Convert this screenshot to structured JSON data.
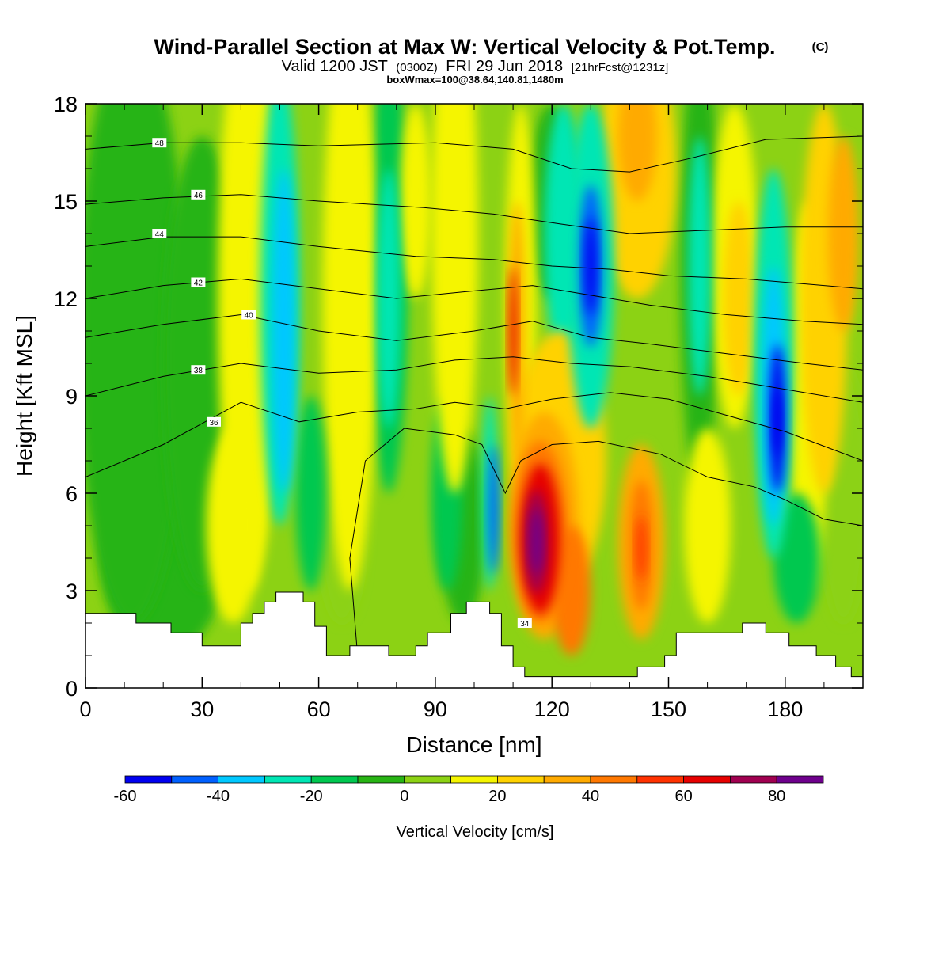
{
  "title": {
    "main": "Wind-Parallel Section at Max W: Vertical Velocity & Pot.Temp.",
    "copyright": "(C)",
    "valid_prefix": "Valid 1200 JST",
    "valid_utc": "(0300Z)",
    "valid_date": "FRI 29 Jun 2018",
    "forecast": "[21hrFcst@1231z]",
    "box_info": "boxWmax=100@38.64,140.81,1480m"
  },
  "chart_data": {
    "type": "heatmap",
    "xlabel": "Distance [nm]",
    "ylabel": "Height [Kft MSL]",
    "xlim": [
      0,
      200
    ],
    "ylim": [
      0,
      18
    ],
    "x_ticks": [
      0,
      30,
      60,
      90,
      120,
      150,
      180
    ],
    "y_ticks": [
      0,
      3,
      6,
      9,
      12,
      15,
      18
    ],
    "colorbar": {
      "label": "Vertical Velocity [cm/s]",
      "levels": [
        -60,
        -50,
        -40,
        -30,
        -20,
        -10,
        0,
        10,
        20,
        30,
        40,
        50,
        60,
        70,
        80,
        90
      ],
      "tick_labels": [
        "-60",
        "-40",
        "-20",
        "0",
        "20",
        "40",
        "60",
        "80"
      ],
      "tick_values": [
        -60,
        -40,
        -20,
        0,
        20,
        40,
        60,
        80
      ],
      "colors": [
        "#0000f0",
        "#0060ff",
        "#00c8ff",
        "#00e6b4",
        "#00c850",
        "#28b414",
        "#8cd214",
        "#f5f500",
        "#ffd200",
        "#ffaa00",
        "#ff7800",
        "#ff3200",
        "#e60000",
        "#a00050",
        "#6e008c"
      ]
    },
    "vertical_velocity_extremes": [
      {
        "x": 117,
        "y": 4.5,
        "w": 90
      },
      {
        "x": 143,
        "y": 4.3,
        "w": 55
      },
      {
        "x": 130,
        "y": 13,
        "w": -60
      },
      {
        "x": 178,
        "y": 8.2,
        "w": -60
      },
      {
        "x": 104,
        "y": 5.5,
        "w": -50
      }
    ],
    "theta_contours": [
      {
        "label": "34",
        "label_x": 113,
        "label_y": 2.0,
        "points": [
          [
            70,
            1
          ],
          [
            68,
            4
          ],
          [
            72,
            7
          ],
          [
            82,
            8
          ],
          [
            95,
            7.8
          ],
          [
            102,
            7.5
          ],
          [
            108,
            6
          ],
          [
            112,
            7
          ],
          [
            120,
            7.5
          ],
          [
            132,
            7.6
          ],
          [
            148,
            7.2
          ],
          [
            160,
            6.5
          ],
          [
            172,
            6.2
          ],
          [
            180,
            5.8
          ],
          [
            190,
            5.2
          ],
          [
            200,
            5.0
          ]
        ]
      },
      {
        "label": "36",
        "label_x": 33,
        "label_y": 8.2,
        "points": [
          [
            0,
            6.5
          ],
          [
            20,
            7.5
          ],
          [
            40,
            8.8
          ],
          [
            55,
            8.2
          ],
          [
            70,
            8.5
          ],
          [
            85,
            8.6
          ],
          [
            95,
            8.8
          ],
          [
            108,
            8.6
          ],
          [
            120,
            8.9
          ],
          [
            135,
            9.1
          ],
          [
            150,
            8.9
          ],
          [
            165,
            8.4
          ],
          [
            180,
            7.9
          ],
          [
            200,
            7.0
          ]
        ]
      },
      {
        "label": "38",
        "label_x": 29,
        "label_y": 9.8,
        "points": [
          [
            0,
            9.0
          ],
          [
            20,
            9.6
          ],
          [
            40,
            10.0
          ],
          [
            60,
            9.7
          ],
          [
            80,
            9.8
          ],
          [
            95,
            10.1
          ],
          [
            110,
            10.2
          ],
          [
            125,
            10.0
          ],
          [
            140,
            9.9
          ],
          [
            160,
            9.6
          ],
          [
            180,
            9.2
          ],
          [
            200,
            8.8
          ]
        ]
      },
      {
        "label": "40",
        "label_x": 42,
        "label_y": 11.5,
        "points": [
          [
            0,
            10.8
          ],
          [
            20,
            11.2
          ],
          [
            40,
            11.5
          ],
          [
            60,
            11.0
          ],
          [
            80,
            10.7
          ],
          [
            100,
            11.0
          ],
          [
            115,
            11.3
          ],
          [
            130,
            10.8
          ],
          [
            145,
            10.6
          ],
          [
            165,
            10.3
          ],
          [
            185,
            10.0
          ],
          [
            200,
            9.8
          ]
        ]
      },
      {
        "label": "42",
        "label_x": 29,
        "label_y": 12.5,
        "points": [
          [
            0,
            12.0
          ],
          [
            20,
            12.4
          ],
          [
            40,
            12.6
          ],
          [
            60,
            12.3
          ],
          [
            80,
            12.0
          ],
          [
            97,
            12.2
          ],
          [
            115,
            12.4
          ],
          [
            130,
            12.1
          ],
          [
            145,
            11.8
          ],
          [
            165,
            11.5
          ],
          [
            185,
            11.3
          ],
          [
            200,
            11.2
          ]
        ]
      },
      {
        "label": "44",
        "label_x": 19,
        "label_y": 14.0,
        "points": [
          [
            0,
            13.6
          ],
          [
            20,
            13.9
          ],
          [
            40,
            13.9
          ],
          [
            60,
            13.6
          ],
          [
            85,
            13.3
          ],
          [
            105,
            13.2
          ],
          [
            120,
            13.0
          ],
          [
            135,
            12.9
          ],
          [
            150,
            12.7
          ],
          [
            170,
            12.6
          ],
          [
            190,
            12.4
          ],
          [
            200,
            12.3
          ]
        ]
      },
      {
        "label": "46",
        "label_x": 29,
        "label_y": 15.2,
        "points": [
          [
            0,
            14.9
          ],
          [
            20,
            15.1
          ],
          [
            40,
            15.2
          ],
          [
            60,
            15.0
          ],
          [
            87,
            14.8
          ],
          [
            105,
            14.6
          ],
          [
            122,
            14.3
          ],
          [
            140,
            14.0
          ],
          [
            160,
            14.1
          ],
          [
            180,
            14.2
          ],
          [
            200,
            14.2
          ]
        ]
      },
      {
        "label": "48",
        "label_x": 19,
        "label_y": 16.8,
        "points": [
          [
            0,
            16.6
          ],
          [
            20,
            16.8
          ],
          [
            40,
            16.8
          ],
          [
            60,
            16.7
          ],
          [
            90,
            16.8
          ],
          [
            110,
            16.6
          ],
          [
            125,
            16.0
          ],
          [
            140,
            15.9
          ],
          [
            155,
            16.3
          ],
          [
            175,
            16.9
          ],
          [
            200,
            17.0
          ]
        ]
      }
    ]
  }
}
